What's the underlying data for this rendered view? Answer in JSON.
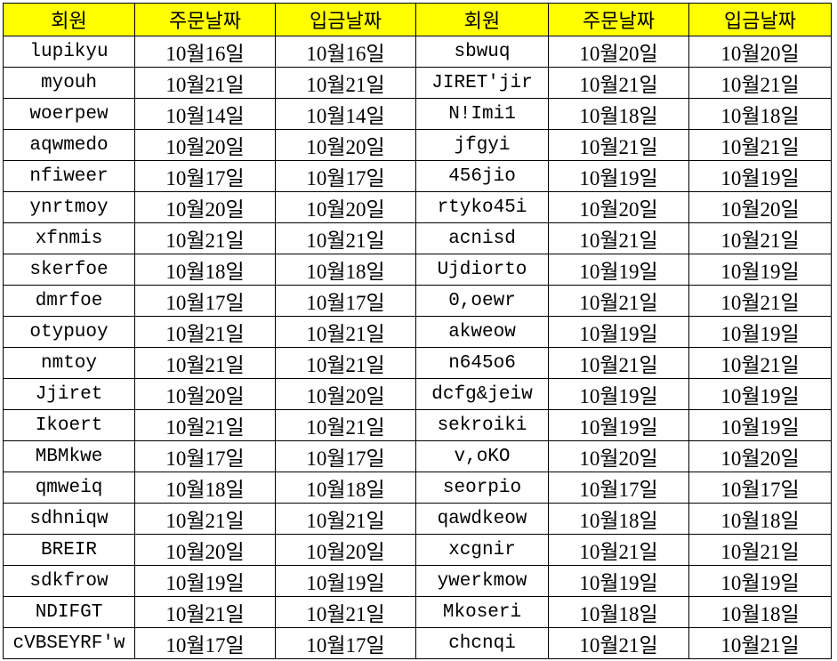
{
  "header_fill": "#ffff00",
  "headers": [
    "회원",
    "주문날짜",
    "입금날짜",
    "회원",
    "주문날짜",
    "입금날짜"
  ],
  "rows": [
    [
      "lupikyu",
      "10월16일",
      "10월16일",
      "sbwuq",
      "10월20일",
      "10월20일"
    ],
    [
      "myouh",
      "10월21일",
      "10월21일",
      "JIRET'jir",
      "10월21일",
      "10월21일"
    ],
    [
      "woerpew",
      "10월14일",
      "10월14일",
      "N!Imi1",
      "10월18일",
      "10월18일"
    ],
    [
      "aqwmedo",
      "10월20일",
      "10월20일",
      "jfgyi",
      "10월21일",
      "10월21일"
    ],
    [
      "nfiweer",
      "10월17일",
      "10월17일",
      "456jio",
      "10월19일",
      "10월19일"
    ],
    [
      "ynrtmoy",
      "10월20일",
      "10월20일",
      "rtyko45i",
      "10월20일",
      "10월20일"
    ],
    [
      "xfnmis",
      "10월21일",
      "10월21일",
      "acnisd",
      "10월21일",
      "10월21일"
    ],
    [
      "skerfoe",
      "10월18일",
      "10월18일",
      "Ujdiorto",
      "10월19일",
      "10월19일"
    ],
    [
      "dmrfoe",
      "10월17일",
      "10월17일",
      "0,oewr",
      "10월21일",
      "10월21일"
    ],
    [
      "otypuoy",
      "10월21일",
      "10월21일",
      "akweow",
      "10월19일",
      "10월19일"
    ],
    [
      "nmtoy",
      "10월21일",
      "10월21일",
      "n645o6",
      "10월21일",
      "10월21일"
    ],
    [
      "Jjiret",
      "10월20일",
      "10월20일",
      "dcfg&jeiw",
      "10월19일",
      "10월19일"
    ],
    [
      "Ikoert",
      "10월21일",
      "10월21일",
      "sekroiki",
      "10월19일",
      "10월19일"
    ],
    [
      "MBMkwe",
      "10월17일",
      "10월17일",
      "v,oKO",
      "10월20일",
      "10월20일"
    ],
    [
      "qmweiq",
      "10월18일",
      "10월18일",
      "seorpio",
      "10월17일",
      "10월17일"
    ],
    [
      "sdhniqw",
      "10월21일",
      "10월21일",
      "qawdkeow",
      "10월18일",
      "10월18일"
    ],
    [
      "BREIR",
      "10월20일",
      "10월20일",
      "xcgnir",
      "10월21일",
      "10월21일"
    ],
    [
      "sdkfrow",
      "10월19일",
      "10월19일",
      "ywerkmow",
      "10월19일",
      "10월19일"
    ],
    [
      "NDIFGT",
      "10월21일",
      "10월21일",
      "Mkoseri",
      "10월18일",
      "10월18일"
    ],
    [
      "cVBSEYRF'w",
      "10월17일",
      "10월17일",
      "chcnqi",
      "10월21일",
      "10월21일"
    ]
  ]
}
